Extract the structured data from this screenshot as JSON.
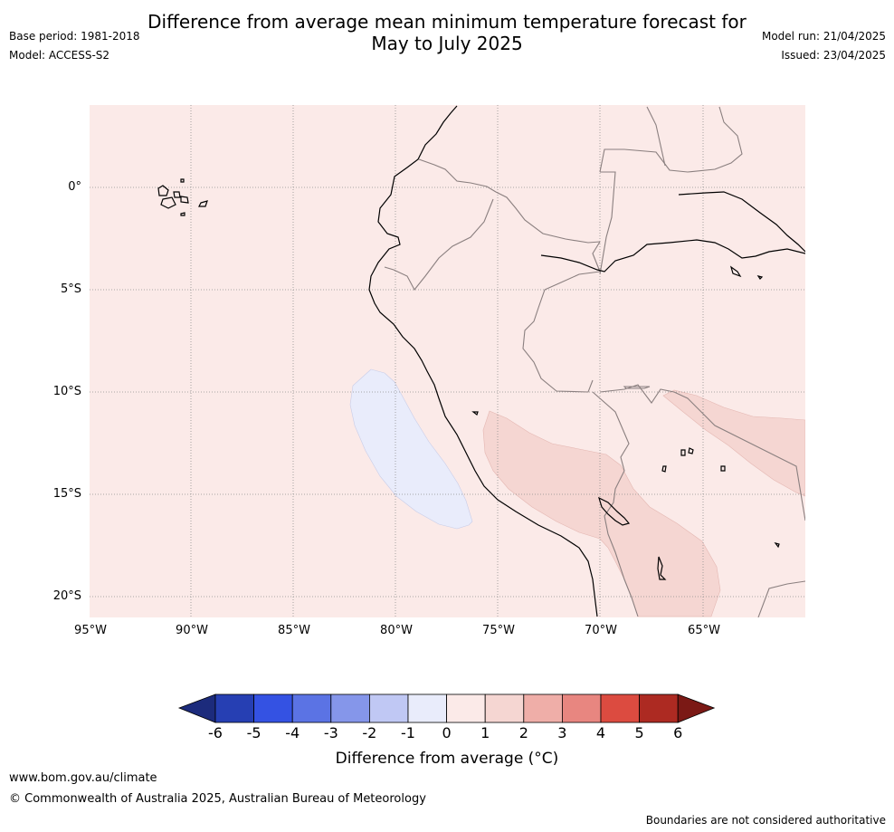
{
  "title_line1": "Difference from average mean minimum temperature forecast for",
  "title_line2": "May to July 2025",
  "meta_left": [
    "Base period: 1981-2018",
    "Model: ACCESS-S2"
  ],
  "meta_right": [
    "Model run: 21/04/2025",
    "Issued: 23/04/2025"
  ],
  "map": {
    "latitude_labels": [
      "0°",
      "5°S",
      "10°S",
      "15°S",
      "20°S"
    ],
    "longitude_labels": [
      "95°W",
      "90°W",
      "85°W",
      "80°W",
      "75°W",
      "70°W",
      "65°W"
    ],
    "background_color": "#fbeae8",
    "regions": [
      {
        "name": "cool-anomaly-offshore-peru",
        "category": "0 to -1",
        "color": "#e9ecfb"
      },
      {
        "name": "warm-anomaly-southern-peru-bolivia",
        "category": "1 to 2",
        "color": "#f5d6d2"
      },
      {
        "name": "warm-anomaly-eastern-bolivia",
        "category": "1 to 2",
        "color": "#f5d6d2"
      }
    ]
  },
  "colorbar": {
    "ticks": [
      "-6",
      "-5",
      "-4",
      "-3",
      "-2",
      "-1",
      "0",
      "1",
      "2",
      "3",
      "4",
      "5",
      "6"
    ],
    "colors": [
      "#1c2b7c",
      "#263fb3",
      "#3452e3",
      "#5b73e4",
      "#8596ea",
      "#c0c8f4",
      "#e9ecfb",
      "#fbeae8",
      "#f5d6d2",
      "#efaea8",
      "#e88680",
      "#dc4b40",
      "#ad2a22",
      "#7b1915"
    ],
    "label": "Difference from average (°C)"
  },
  "footer": {
    "url": "www.bom.gov.au/climate",
    "copyright": "© Commonwealth of Australia 2025, Australian Bureau of Meteorology",
    "note": "Boundaries are not considered authoritative"
  }
}
